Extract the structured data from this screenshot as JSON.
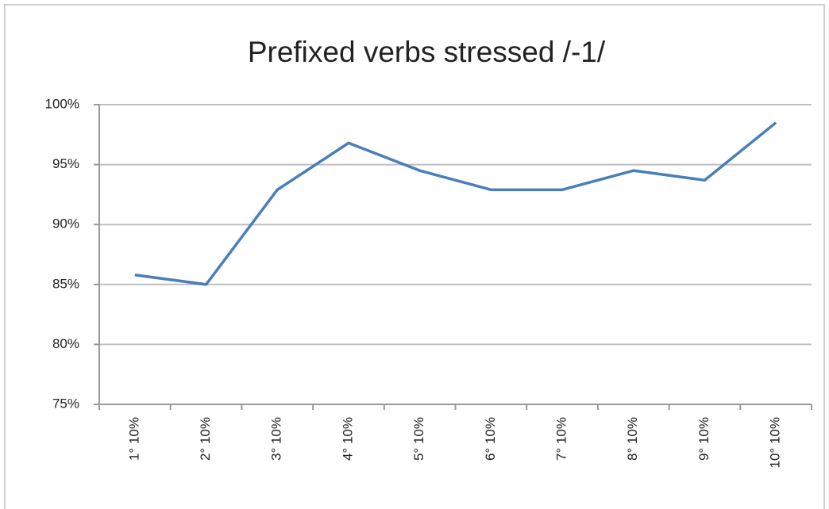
{
  "chart_data": {
    "type": "line",
    "title": "Prefixed verbs stressed /-1/",
    "categories": [
      "1° 10%",
      "2° 10%",
      "3° 10%",
      "4° 10%",
      "5° 10%",
      "6° 10%",
      "7° 10%",
      "8° 10%",
      "9° 10%",
      "10° 10%"
    ],
    "values": [
      85.8,
      85.0,
      92.9,
      96.8,
      94.5,
      92.9,
      92.9,
      94.5,
      93.7,
      98.5
    ],
    "color": "#4a7ebb",
    "ylim": [
      75,
      100
    ],
    "yticks": [
      {
        "value": 75,
        "label": "75%"
      },
      {
        "value": 80,
        "label": "80%"
      },
      {
        "value": 85,
        "label": "85%"
      },
      {
        "value": 90,
        "label": "90%"
      },
      {
        "value": 95,
        "label": "95%"
      },
      {
        "value": 100,
        "label": "100%"
      }
    ],
    "grid": true
  }
}
